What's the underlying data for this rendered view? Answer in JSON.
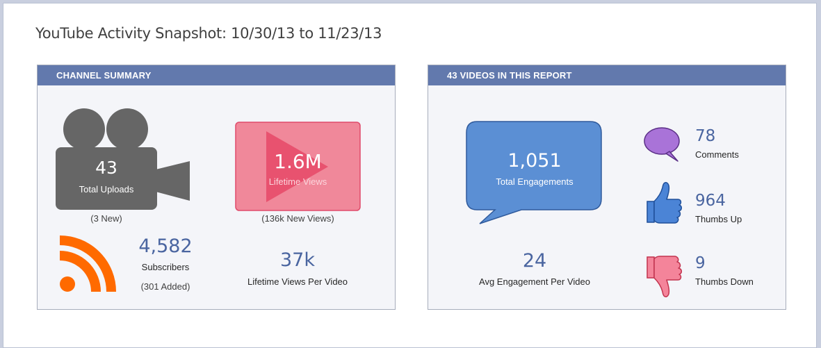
{
  "page": {
    "title": "YouTube Activity Snapshot: 10/30/13 to 11/23/13"
  },
  "channel_summary": {
    "header": "CHANNEL SUMMARY",
    "uploads": {
      "value": "43",
      "label": "Total Uploads",
      "note": "(3 New)"
    },
    "lifetime_views": {
      "value": "1.6M",
      "label": "Lifetime Views",
      "note": "(136k New Views)"
    },
    "subscribers": {
      "value": "4,582",
      "label": "Subscribers",
      "note": "(301 Added)"
    },
    "views_per_video": {
      "value": "37k",
      "label": "Lifetime Views Per Video"
    }
  },
  "videos_report": {
    "header": "43 VIDEOS IN THIS REPORT",
    "engagements": {
      "value": "1,051",
      "label": "Total Engagements"
    },
    "avg_engagement": {
      "value": "24",
      "label": "Avg Engagement Per Video"
    },
    "comments": {
      "value": "78",
      "label": "Comments"
    },
    "thumbs_up": {
      "value": "964",
      "label": "Thumbs Up"
    },
    "thumbs_down": {
      "value": "9",
      "label": "Thumbs Down"
    }
  },
  "icons": {
    "camera": "video-camera-icon",
    "play": "play-icon",
    "rss": "rss-icon",
    "speech": "speech-bubble-icon",
    "comment": "comment-bubble-icon",
    "thumbs_up": "thumbs-up-icon",
    "thumbs_down": "thumbs-down-icon"
  },
  "colors": {
    "header_bar": "#6279ad",
    "value_text": "#4a65a0",
    "camera": "#666666",
    "play_box": "#f0889a",
    "rss": "#ff6a00",
    "engagement_bubble": "#5b8fd4",
    "comment_bubble": "#a973d8",
    "thumbs_up": "#4b84d6",
    "thumbs_down": "#f4849a"
  }
}
